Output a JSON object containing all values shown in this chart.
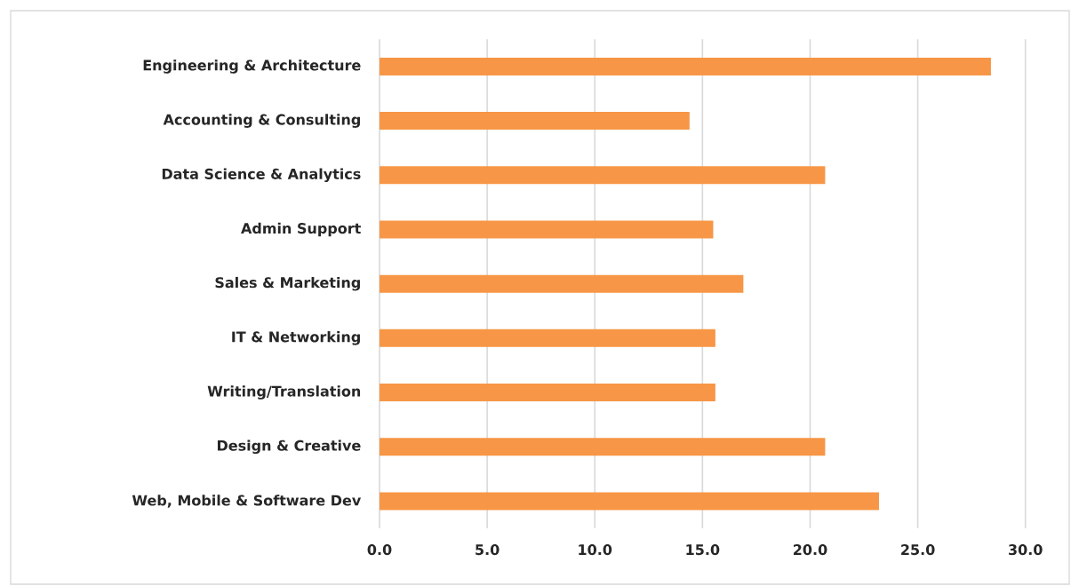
{
  "chart_data": {
    "type": "bar",
    "orientation": "horizontal",
    "categories": [
      "Engineering & Architecture",
      "Accounting & Consulting",
      "Data Science & Analytics",
      "Admin Support",
      "Sales & Marketing",
      "IT & Networking",
      "Writing/Translation",
      "Design & Creative",
      "Web, Mobile & Software Dev"
    ],
    "values": [
      28.4,
      14.4,
      20.7,
      15.5,
      16.9,
      15.6,
      15.6,
      20.7,
      23.2
    ],
    "color": "#f79646",
    "xlim": [
      0,
      30
    ],
    "xticks": [
      {
        "value": 0,
        "label": "0.0"
      },
      {
        "value": 5,
        "label": "5.0"
      },
      {
        "value": 10,
        "label": "10.0"
      },
      {
        "value": 15,
        "label": "15.0"
      },
      {
        "value": 20,
        "label": "20.0"
      },
      {
        "value": 25,
        "label": "25.0"
      },
      {
        "value": 30,
        "label": "30.0"
      }
    ],
    "grid": "x"
  }
}
